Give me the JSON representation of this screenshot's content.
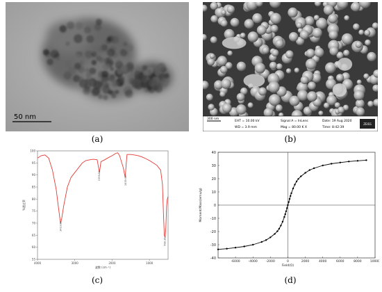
{
  "panels": {
    "a": {
      "caption": "(a)",
      "scale_bar_label": "50 nm"
    },
    "b": {
      "caption": "(b)",
      "info": {
        "scale": "300 nm",
        "eht": "EHT = 10.00 kV",
        "wd": "WD = 3.9 mm",
        "signal": "Signal A = InLens",
        "mag": "Mag = 80.00 K X",
        "date": "Date: 19 Aug 2020",
        "time": "Time: 8:42:39",
        "logo": "ZEISS"
      }
    },
    "c": {
      "caption": "(c)",
      "chart_data": {
        "type": "line",
        "xlabel": "波数 (cm⁻¹)",
        "ylabel": "%透过率",
        "x_reversed": true,
        "xlim": [
          4000,
          500
        ],
        "ylim": [
          55,
          100
        ],
        "x_ticks": [
          4000,
          3000,
          2000,
          1000
        ],
        "y_ticks": [
          55,
          60,
          65,
          70,
          75,
          80,
          85,
          90,
          95,
          100
        ],
        "line_color": "#e53935",
        "x": [
          4000,
          3900,
          3800,
          3700,
          3600,
          3500,
          3450,
          3400,
          3380,
          3350,
          3300,
          3200,
          3100,
          3000,
          2900,
          2800,
          2700,
          2600,
          2500,
          2400,
          2340,
          2300,
          2200,
          2100,
          2000,
          1950,
          1900,
          1850,
          1800,
          1700,
          1650,
          1640,
          1620,
          1600,
          1500,
          1400,
          1300,
          1200,
          1100,
          1000,
          900,
          800,
          700,
          650,
          620,
          600,
          580,
          560,
          540,
          520,
          500
        ],
        "y": [
          97,
          98,
          98.3,
          97,
          92,
          84,
          78,
          72,
          70,
          72,
          77,
          85,
          89,
          91,
          93,
          95,
          96,
          96.3,
          96.5,
          96.3,
          91,
          95.5,
          96.3,
          97.2,
          98,
          98.5,
          99,
          99.2,
          98,
          93,
          89,
          91,
          95,
          98.5,
          98.5,
          98.3,
          98,
          97.5,
          96.8,
          96,
          95,
          94,
          92,
          86,
          72,
          65,
          64,
          68,
          77,
          80,
          81
        ],
        "peak_labels": [
          {
            "x": 3380,
            "y": 70,
            "text": "3413.96"
          },
          {
            "x": 2340,
            "y": 91,
            "text": "2359.53"
          },
          {
            "x": 1640,
            "y": 89,
            "text": "1635.38"
          },
          {
            "x": 580,
            "y": 64,
            "text": "588.15"
          }
        ]
      }
    },
    "d": {
      "caption": "(d)",
      "chart_data": {
        "type": "line",
        "xlabel": "Field(O)",
        "ylabel": "Moment/Mass(emu/g)",
        "xlim": [
          -8000,
          10000
        ],
        "ylim": [
          -40,
          40
        ],
        "x_ticks": [
          -6000,
          -4000,
          -2000,
          0,
          2000,
          4000,
          6000,
          8000,
          10000
        ],
        "y_ticks": [
          -40,
          -30,
          -20,
          -10,
          0,
          10,
          20,
          30,
          40
        ],
        "grid": false,
        "marker": "circle",
        "x": [
          -9000,
          -8000,
          -7000,
          -6000,
          -5000,
          -4000,
          -3000,
          -2500,
          -2000,
          -1500,
          -1200,
          -1000,
          -800,
          -600,
          -400,
          -300,
          -200,
          -100,
          0,
          100,
          200,
          300,
          400,
          600,
          800,
          1000,
          1200,
          1500,
          2000,
          2500,
          3000,
          4000,
          5000,
          6000,
          7000,
          8000,
          9000
        ],
        "y": [
          -34.0,
          -33.5,
          -33.0,
          -32.2,
          -31.3,
          -30.0,
          -27.9,
          -26.5,
          -24.4,
          -21.8,
          -19.8,
          -17.9,
          -15.5,
          -12.6,
          -9.0,
          -6.9,
          -4.7,
          -2.3,
          0.0,
          2.3,
          4.7,
          6.9,
          9.0,
          12.6,
          15.5,
          17.9,
          19.8,
          21.8,
          24.4,
          26.5,
          27.9,
          30.0,
          31.3,
          32.2,
          33.0,
          33.5,
          34.0
        ]
      }
    }
  }
}
